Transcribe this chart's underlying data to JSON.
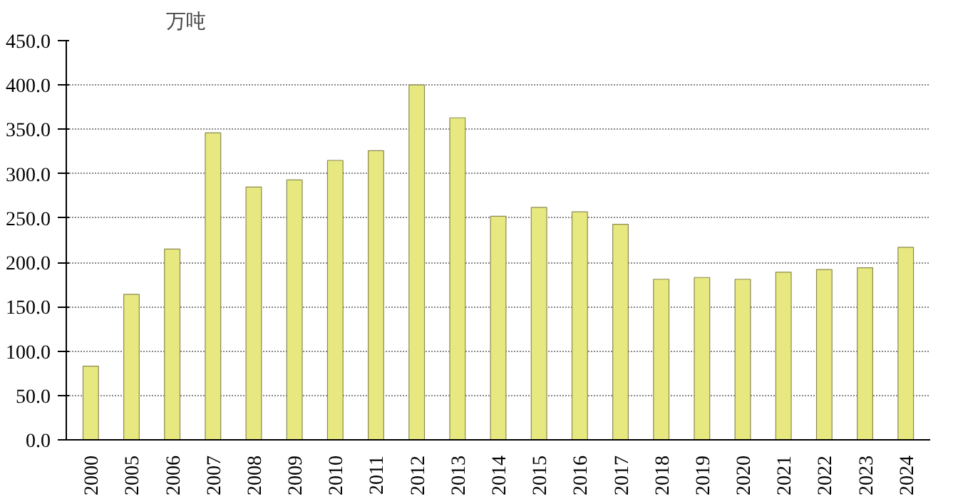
{
  "chart_data": {
    "type": "bar",
    "ylabel": "万吨",
    "categories": [
      "2000",
      "2005",
      "2006",
      "2007",
      "2008",
      "2009",
      "2010",
      "2011",
      "2012",
      "2013",
      "2014",
      "2015",
      "2016",
      "2017",
      "2018",
      "2019",
      "2020",
      "2021",
      "2022",
      "2023",
      "2024"
    ],
    "values": [
      83,
      164,
      215,
      346,
      285,
      293,
      315,
      326,
      400,
      363,
      252,
      262,
      257,
      243,
      181,
      183,
      181,
      189,
      192,
      194,
      217
    ],
    "color": "#e8e880",
    "ylim": [
      0,
      450
    ],
    "yticks": [
      {
        "value": 0,
        "label": "0.0"
      },
      {
        "value": 50,
        "label": "50.0"
      },
      {
        "value": 100,
        "label": "100.0"
      },
      {
        "value": 150,
        "label": "150.0"
      },
      {
        "value": 200,
        "label": "200.0"
      },
      {
        "value": 250,
        "label": "250.0"
      },
      {
        "value": 300,
        "label": "300.0"
      },
      {
        "value": 350,
        "label": "350.0"
      },
      {
        "value": 400,
        "label": "400.0"
      },
      {
        "value": 450,
        "label": "450.0"
      }
    ],
    "grid": "y"
  }
}
